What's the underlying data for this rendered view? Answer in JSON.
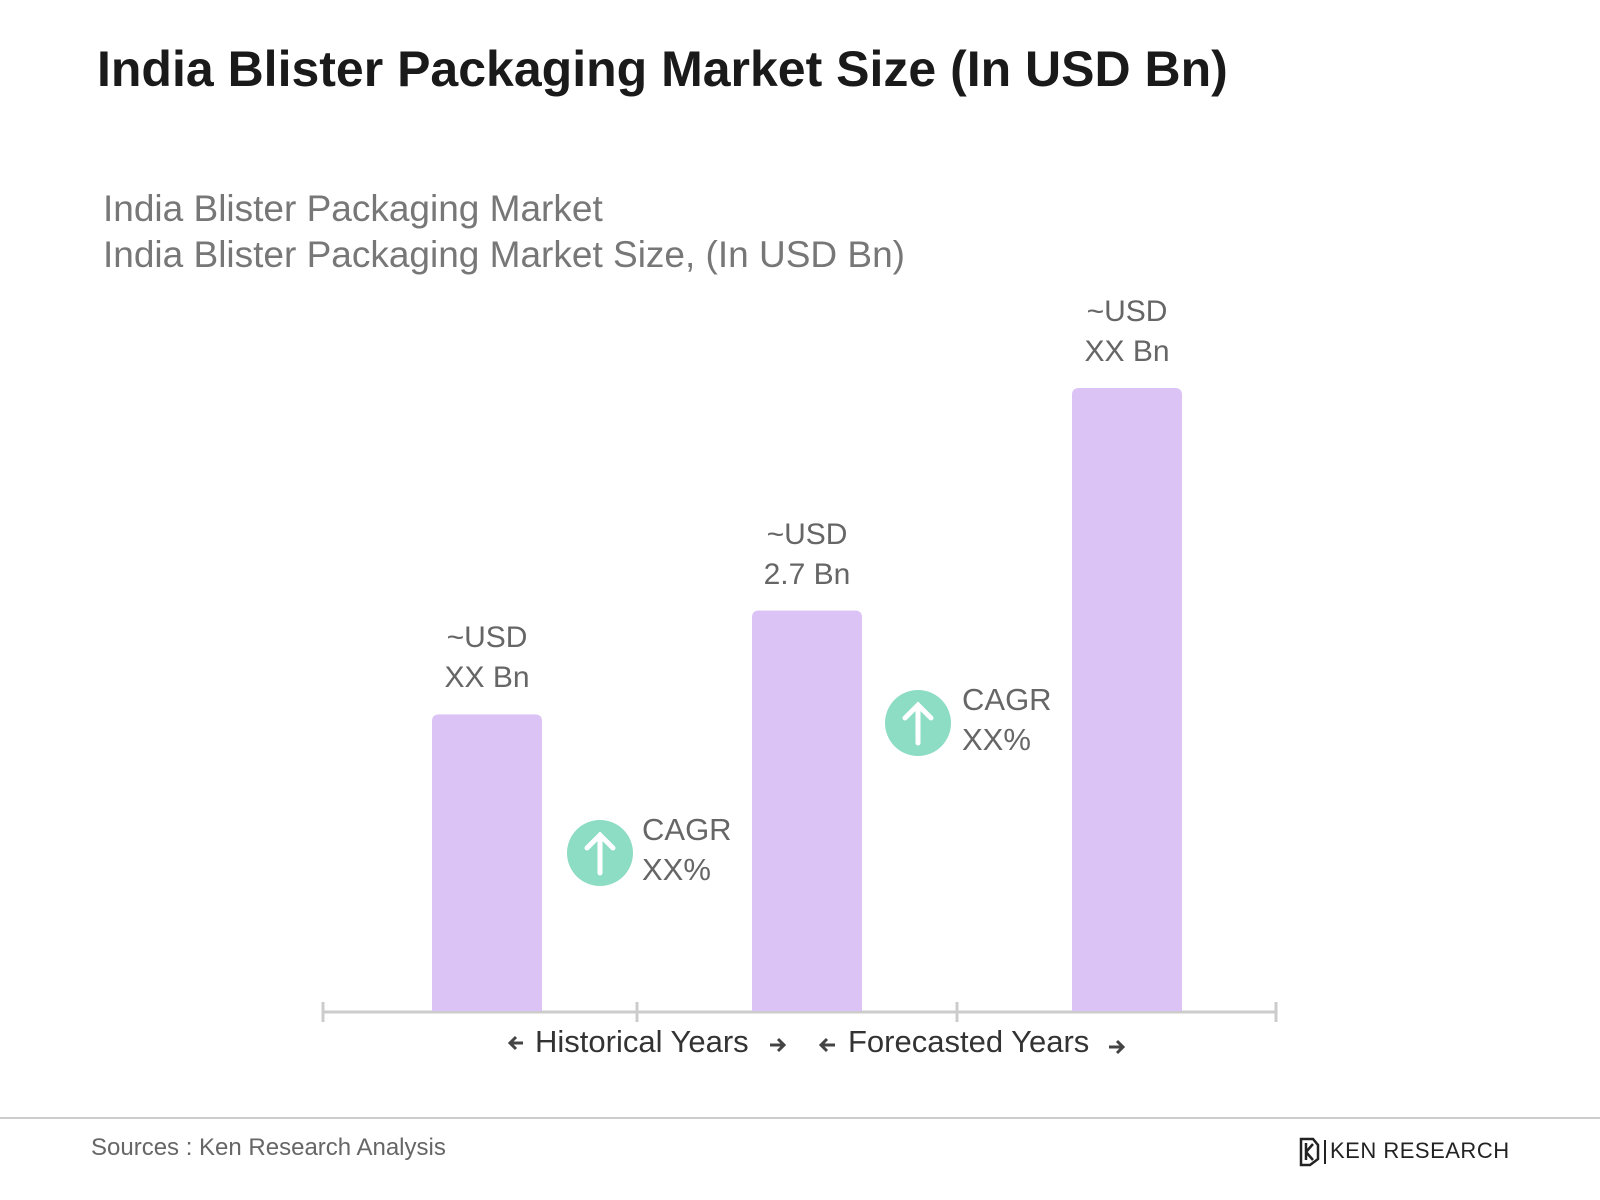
{
  "chart_data": {
    "type": "bar",
    "title": "India Blister Packaging Market Size (In USD Bn)",
    "subtitle": [
      "India Blister Packaging Market",
      "India Blister Packaging Market Size, (In USD Bn)"
    ],
    "categories": [
      null,
      null,
      null
    ],
    "values": [
      2.0,
      2.7,
      4.2
    ],
    "value_labels": [
      "~USD XX Bn",
      "~USD 2.7 Bn",
      "~USD XX Bn"
    ],
    "color": "#dcc3f5",
    "annotations": [
      "CAGR XX%",
      "CAGR XX%"
    ],
    "period_labels": [
      "Historical Years",
      "Forecasted Years"
    ],
    "source": "Sources : Ken Research Analysis",
    "brand": "KEN RESEARCH"
  }
}
